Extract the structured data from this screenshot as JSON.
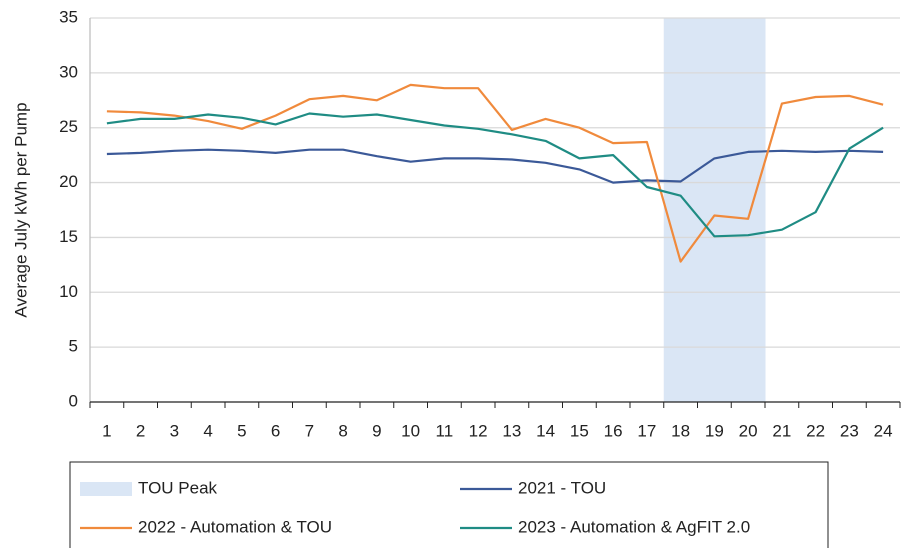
{
  "chart_data": {
    "type": "line",
    "y_label": "Average July kWh per Pump",
    "categories": [
      "1",
      "2",
      "3",
      "4",
      "5",
      "6",
      "7",
      "8",
      "9",
      "10",
      "11",
      "12",
      "13",
      "14",
      "15",
      "16",
      "17",
      "18",
      "19",
      "20",
      "21",
      "22",
      "23",
      "24"
    ],
    "ylim": [
      0,
      35
    ],
    "yticks": [
      0,
      5,
      10,
      15,
      20,
      25,
      30,
      35
    ],
    "grid": true,
    "series": [
      {
        "name": "TOU Peak",
        "type": "bar",
        "color": "#dae6f5",
        "values": [
          null,
          null,
          null,
          null,
          null,
          null,
          null,
          null,
          null,
          null,
          null,
          null,
          null,
          null,
          null,
          null,
          null,
          35,
          35,
          35,
          null,
          null,
          null,
          null
        ]
      },
      {
        "name": "2021 - TOU",
        "type": "line",
        "color": "#3b5998",
        "values": [
          22.6,
          22.7,
          22.9,
          23.0,
          22.9,
          22.7,
          23.0,
          23.0,
          22.4,
          21.9,
          22.2,
          22.2,
          22.1,
          21.8,
          21.2,
          20.0,
          20.2,
          20.1,
          22.2,
          22.8,
          22.9,
          22.8,
          22.9,
          22.8
        ]
      },
      {
        "name": "2022 - Automation & TOU",
        "type": "line",
        "color": "#f08a3c",
        "values": [
          26.5,
          26.4,
          26.1,
          25.6,
          24.9,
          26.1,
          27.6,
          27.9,
          27.5,
          28.9,
          28.6,
          28.6,
          24.8,
          25.8,
          25.0,
          23.6,
          23.7,
          12.8,
          17.0,
          16.7,
          27.2,
          27.8,
          27.9,
          27.1
        ]
      },
      {
        "name": "2023 - Automation & AgFIT 2.0",
        "type": "line",
        "color": "#1f8c84",
        "values": [
          25.4,
          25.8,
          25.8,
          26.2,
          25.9,
          25.3,
          26.3,
          26.0,
          26.2,
          25.7,
          25.2,
          24.9,
          24.4,
          23.8,
          22.2,
          22.5,
          19.6,
          18.8,
          15.1,
          15.2,
          15.7,
          17.3,
          23.1,
          25.0
        ]
      }
    ]
  }
}
